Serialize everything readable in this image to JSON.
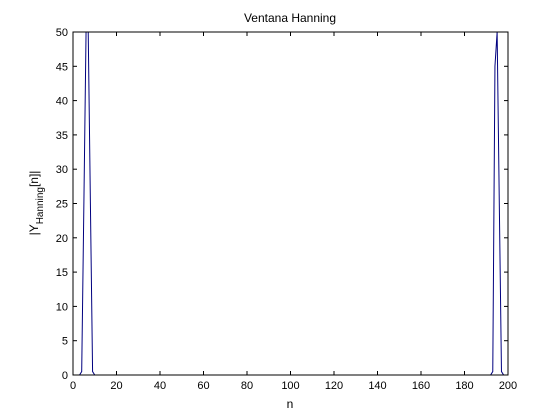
{
  "chart_data": {
    "type": "line",
    "title": "Ventana Hanning",
    "xlabel": "n",
    "ylabel_main": "|Y",
    "ylabel_sub": "Hanning",
    "ylabel_tail": "[n]|",
    "xlim": [
      0,
      200
    ],
    "ylim": [
      0,
      50
    ],
    "xticks": [
      0,
      20,
      40,
      60,
      80,
      100,
      120,
      140,
      160,
      180,
      200
    ],
    "yticks": [
      0,
      5,
      10,
      15,
      20,
      25,
      30,
      35,
      40,
      45,
      50
    ],
    "grid": false,
    "line_color": "#00007F",
    "series": [
      {
        "x": [
          0,
          1,
          2,
          3,
          4,
          5,
          6,
          7,
          8,
          9,
          10,
          11,
          12,
          13,
          14,
          15,
          16,
          190,
          191,
          192,
          193,
          194,
          195,
          196,
          197,
          198,
          199
        ],
        "y": [
          0,
          0,
          0,
          0,
          0.5,
          25,
          50,
          50,
          25,
          0.5,
          0,
          0,
          0,
          0,
          0,
          0,
          0,
          0,
          0,
          0,
          0.5,
          45,
          50,
          25,
          0.5,
          0,
          0
        ]
      }
    ]
  }
}
